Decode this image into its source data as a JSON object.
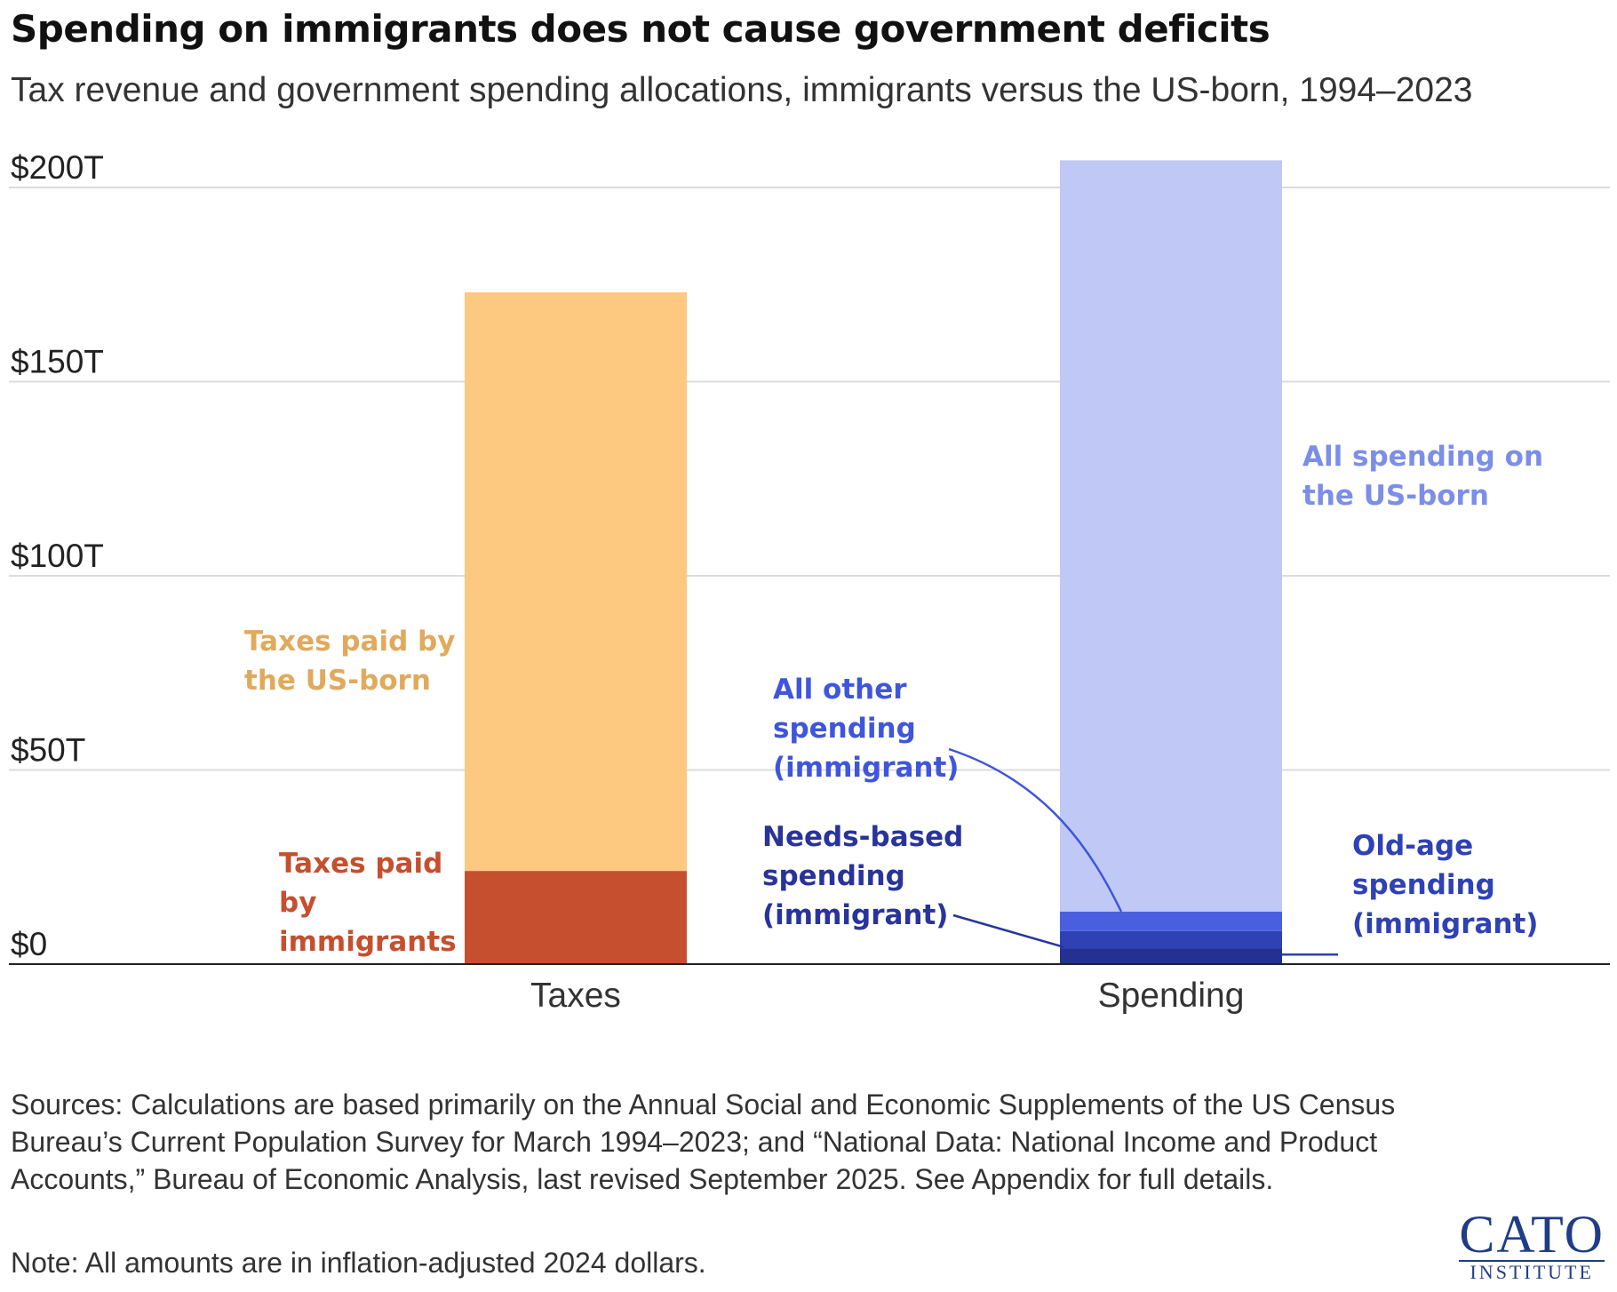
{
  "title": "Spending on immigrants does not cause government deficits",
  "subtitle": "Tax revenue and government spending allocations, immigrants versus the US-born, 1994–2023",
  "chart_data": {
    "type": "bar",
    "stacked": true,
    "categories": [
      "Taxes",
      "Spending"
    ],
    "ylim": [
      0,
      200
    ],
    "yticks": [
      0,
      50,
      100,
      150,
      200
    ],
    "ytick_labels": [
      "$0",
      "$50T",
      "$100T",
      "$150T",
      "$200T"
    ],
    "grid": true,
    "xlabel": "",
    "ylabel": "",
    "stacks": [
      {
        "category": "Taxes",
        "segments": [
          {
            "name": "Taxes paid by immigrants",
            "value": 24,
            "color": "#c54f2e"
          },
          {
            "name": "Taxes paid by the US-born",
            "value": 149,
            "color": "#fdc87f"
          }
        ]
      },
      {
        "category": "Spending",
        "segments": [
          {
            "name": "Old-age spending (immigrant)",
            "value": 4,
            "color": "#243191"
          },
          {
            "name": "Needs-based spending (immigrant)",
            "value": 4.5,
            "color": "#2e41b5"
          },
          {
            "name": "All other spending (immigrant)",
            "value": 5,
            "color": "#4a5fe0"
          },
          {
            "name": "All spending on the US-born",
            "value": 193.5,
            "color": "#c0c8f6"
          }
        ]
      }
    ]
  },
  "annotations": {
    "taxes_usborn": "Taxes paid by\nthe US-born",
    "taxes_immigrants": "Taxes paid\nby\nimmigrants",
    "spending_usborn": "All spending on\nthe US-born",
    "all_other_immigrant": "All other\nspending\n(immigrant)",
    "needs_based_immigrant": "Needs-based\nspending\n(immigrant)",
    "old_age_immigrant": "Old-age\nspending\n(immigrant)"
  },
  "colors": {
    "taxes_usborn_label": "#e1a95c",
    "taxes_immigrants_label": "#c54f2e",
    "spending_usborn_label": "#7b8ee8",
    "all_other_label": "#3f55dd",
    "needs_based_label": "#28349a",
    "old_age_label": "#2e41b5"
  },
  "sources": "Sources: Calculations are based primarily on the Annual Social and Economic Supplements of the US Census Bureau’s Current Population Survey for March 1994–2023; and “National Data: National Income and Product Accounts,” Bureau of Economic Analysis, last revised September 2025. See Appendix for full details.",
  "note": "Note: All amounts are in inflation-adjusted 2024 dollars.",
  "logo": {
    "name": "CATO",
    "sub": "INSTITUTE"
  }
}
